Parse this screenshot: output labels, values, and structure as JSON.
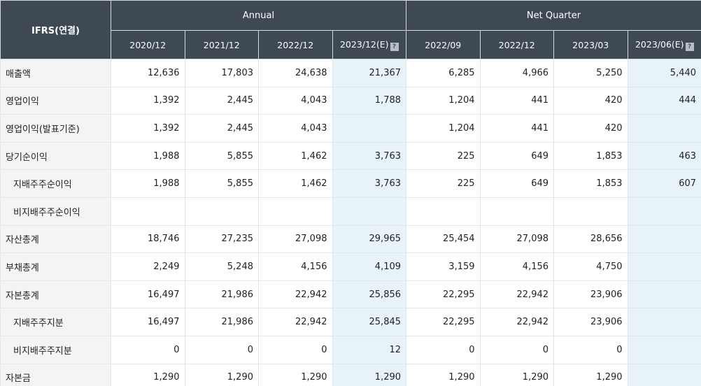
{
  "header": {
    "corner": "IFRS(연결)",
    "groups": [
      "Annual",
      "Net Quarter"
    ],
    "periods": [
      "2020/12",
      "2021/12",
      "2022/12",
      "2023/12(E)",
      "2022/09",
      "2022/12",
      "2023/03",
      "2023/06(E)"
    ],
    "estimate_icon": "?"
  },
  "rows": [
    {
      "label": "매출액",
      "values": [
        "12,636",
        "17,803",
        "24,638",
        "21,367",
        "6,285",
        "4,966",
        "5,250",
        "5,440"
      ]
    },
    {
      "label": "영업이익",
      "values": [
        "1,392",
        "2,445",
        "4,043",
        "1,788",
        "1,204",
        "441",
        "420",
        "444"
      ]
    },
    {
      "label": "영업이익(발표기준)",
      "values": [
        "1,392",
        "2,445",
        "4,043",
        "",
        "1,204",
        "441",
        "420",
        ""
      ]
    },
    {
      "label": "당기순이익",
      "values": [
        "1,988",
        "5,855",
        "1,462",
        "3,763",
        "225",
        "649",
        "1,853",
        "463"
      ]
    },
    {
      "label": "지배주주순이익",
      "values": [
        "1,988",
        "5,855",
        "1,462",
        "3,763",
        "225",
        "649",
        "1,853",
        "607"
      ]
    },
    {
      "label": "비지배주주순이익",
      "values": [
        "",
        "",
        "",
        "",
        "",
        "",
        "",
        ""
      ]
    },
    {
      "label": "자산총계",
      "values": [
        "18,746",
        "27,235",
        "27,098",
        "29,965",
        "25,454",
        "27,098",
        "28,656",
        ""
      ]
    },
    {
      "label": "부채총계",
      "values": [
        "2,249",
        "5,248",
        "4,156",
        "4,109",
        "3,159",
        "4,156",
        "4,750",
        ""
      ]
    },
    {
      "label": "자본총계",
      "values": [
        "16,497",
        "21,986",
        "22,942",
        "25,856",
        "22,295",
        "22,942",
        "23,906",
        ""
      ]
    },
    {
      "label": "지배주주지분",
      "values": [
        "16,497",
        "21,986",
        "22,942",
        "25,845",
        "22,295",
        "22,942",
        "23,906",
        ""
      ]
    },
    {
      "label": "비지배주주지분",
      "values": [
        "0",
        "0",
        "0",
        "12",
        "0",
        "0",
        "0",
        ""
      ]
    },
    {
      "label": "자본금",
      "values": [
        "1,290",
        "1,290",
        "1,290",
        "1,290",
        "1,290",
        "1,290",
        "1,290",
        ""
      ]
    }
  ],
  "colors": {
    "header_bg": "#3f4954",
    "label_bg": "#f3f4f6",
    "estimate_bg": "#e7f3f9"
  }
}
